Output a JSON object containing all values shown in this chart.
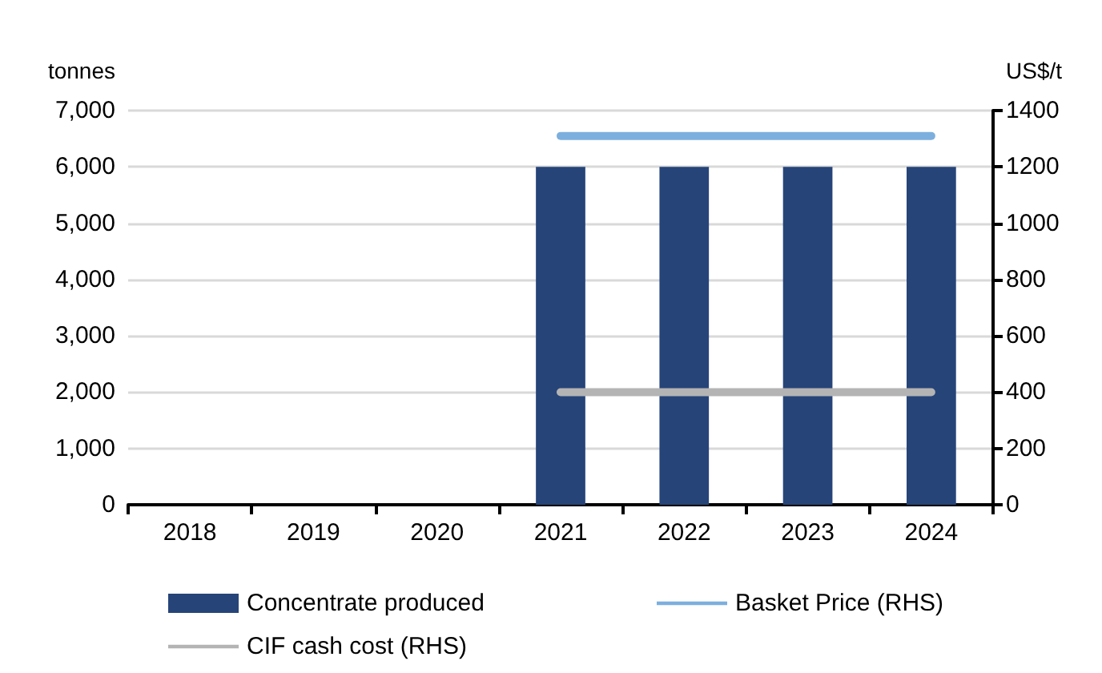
{
  "chart_data": {
    "type": "bar",
    "categories": [
      "2018",
      "2019",
      "2020",
      "2021",
      "2022",
      "2023",
      "2024"
    ],
    "series": [
      {
        "name": "Concentrate produced",
        "color": "#264478",
        "values": [
          null,
          null,
          null,
          6000,
          6000,
          6000,
          6000
        ]
      },
      {
        "name": "Basket Price (RHS)",
        "type": "line",
        "axis": "y2",
        "color": "#7cafdd",
        "values": [
          null,
          null,
          null,
          1310,
          1310,
          1310,
          1310
        ]
      },
      {
        "name": "CIF cash cost (RHS)",
        "type": "line",
        "axis": "y2",
        "color": "#b4b4b4",
        "values": [
          null,
          null,
          null,
          400,
          400,
          400,
          400
        ]
      }
    ],
    "ylabel": "tonnes",
    "y2label": "US$/t",
    "ylim": [
      0,
      7000
    ],
    "yticks": [
      0,
      {
        "value": 1000,
        "label": "1,000"
      },
      {
        "value": 2000,
        "label": "2,000"
      },
      {
        "value": 3000,
        "label": "3,000"
      },
      {
        "value": 4000,
        "label": "4,000"
      },
      {
        "value": 5000,
        "label": "5,000"
      },
      {
        "value": 6000,
        "label": "6,000"
      },
      {
        "value": 7000,
        "label": "7,000"
      }
    ],
    "y2lim": [
      0,
      1400
    ],
    "y2ticks": [
      0,
      200,
      400,
      600,
      800,
      1000,
      1200,
      1400
    ],
    "grid": "y",
    "legend": "bottom",
    "marker": "none",
    "line_style": "solid"
  }
}
